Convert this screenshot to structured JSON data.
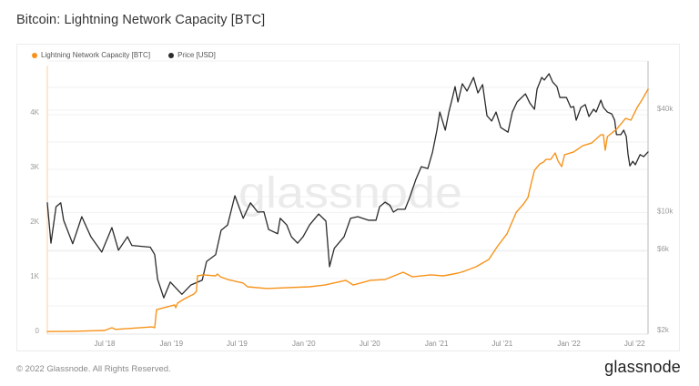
{
  "footer": {
    "copyright": "© 2022 Glassnode. All Rights Reserved.",
    "logo": "glassnode"
  },
  "watermark": "glassnode",
  "chart_data": {
    "type": "line",
    "title": "Bitcoin: Lightning Network Capacity [BTC]",
    "xlabel": "",
    "ylabel_left": "",
    "ylabel_right": "",
    "xlim": [
      "2018-01-24",
      "2022-08-07"
    ],
    "ylim_left": [
      0,
      5000
    ],
    "ylim_right": [
      1950,
      78800
    ],
    "y_right_scale": "log",
    "grid": true,
    "legend_position": "top-left",
    "x_ticks": [
      {
        "date": "2018-07-01",
        "label": "Jul '18"
      },
      {
        "date": "2019-01-01",
        "label": "Jan '19"
      },
      {
        "date": "2019-07-01",
        "label": "Jul '19"
      },
      {
        "date": "2020-01-01",
        "label": "Jan '20"
      },
      {
        "date": "2020-07-01",
        "label": "Jul '20"
      },
      {
        "date": "2021-01-01",
        "label": "Jan '21"
      },
      {
        "date": "2021-07-01",
        "label": "Jul '21"
      },
      {
        "date": "2022-01-01",
        "label": "Jan '22"
      },
      {
        "date": "2022-07-01",
        "label": "Jul '22"
      }
    ],
    "y_left_ticks": [
      {
        "value": 0,
        "label": "0"
      },
      {
        "value": 1000,
        "label": "1K"
      },
      {
        "value": 2000,
        "label": "2K"
      },
      {
        "value": 3000,
        "label": "3K"
      },
      {
        "value": 4000,
        "label": "4K"
      }
    ],
    "y_right_ticks": [
      {
        "value": 2000,
        "label": "$2k"
      },
      {
        "value": 6000,
        "label": "$6k"
      },
      {
        "value": 10000,
        "label": "$10k"
      },
      {
        "value": 40000,
        "label": "$40k"
      }
    ],
    "series": [
      {
        "name": "Lightning Network Capacity [BTC]",
        "axis": "left",
        "color": "#f7931a",
        "points": [
          [
            "2018-01-24",
            30
          ],
          [
            "2018-04-04",
            35
          ],
          [
            "2018-06-01",
            45
          ],
          [
            "2018-07-01",
            50
          ],
          [
            "2018-07-21",
            100
          ],
          [
            "2018-07-31",
            70
          ],
          [
            "2018-09-02",
            85
          ],
          [
            "2018-11-09",
            115
          ],
          [
            "2018-11-16",
            100
          ],
          [
            "2018-11-21",
            430
          ],
          [
            "2019-01-10",
            517
          ],
          [
            "2019-01-13",
            467
          ],
          [
            "2019-01-18",
            550
          ],
          [
            "2019-02-07",
            633
          ],
          [
            "2019-03-04",
            717
          ],
          [
            "2019-03-11",
            767
          ],
          [
            "2019-03-14",
            1050
          ],
          [
            "2019-03-29",
            1067
          ],
          [
            "2019-05-03",
            1050
          ],
          [
            "2019-05-08",
            1083
          ],
          [
            "2019-05-16",
            1033
          ],
          [
            "2019-06-05",
            983
          ],
          [
            "2019-07-18",
            917
          ],
          [
            "2019-07-30",
            850
          ],
          [
            "2019-09-21",
            817
          ],
          [
            "2020-01-17",
            850
          ],
          [
            "2020-02-28",
            883
          ],
          [
            "2020-04-26",
            967
          ],
          [
            "2020-05-16",
            883
          ],
          [
            "2020-07-03",
            967
          ],
          [
            "2020-08-12",
            983
          ],
          [
            "2020-10-01",
            1117
          ],
          [
            "2020-10-26",
            1033
          ],
          [
            "2020-12-16",
            1067
          ],
          [
            "2021-01-20",
            1050
          ],
          [
            "2021-03-01",
            1100
          ],
          [
            "2021-03-18",
            1133
          ],
          [
            "2021-04-20",
            1217
          ],
          [
            "2021-05-25",
            1350
          ],
          [
            "2021-06-19",
            1600
          ],
          [
            "2021-07-14",
            1817
          ],
          [
            "2021-08-09",
            2217
          ],
          [
            "2021-08-29",
            2367
          ],
          [
            "2021-09-10",
            2483
          ],
          [
            "2021-09-18",
            2717
          ],
          [
            "2021-09-28",
            2983
          ],
          [
            "2021-10-13",
            3100
          ],
          [
            "2021-10-23",
            3133
          ],
          [
            "2021-10-30",
            3183
          ],
          [
            "2021-11-12",
            3183
          ],
          [
            "2021-11-24",
            3300
          ],
          [
            "2021-12-02",
            3150
          ],
          [
            "2021-12-12",
            3050
          ],
          [
            "2021-12-20",
            3267
          ],
          [
            "2022-01-14",
            3317
          ],
          [
            "2022-02-08",
            3433
          ],
          [
            "2022-03-05",
            3483
          ],
          [
            "2022-03-30",
            3633
          ],
          [
            "2022-04-06",
            3633
          ],
          [
            "2022-04-11",
            3350
          ],
          [
            "2022-04-17",
            3600
          ],
          [
            "2022-05-12",
            3733
          ],
          [
            "2022-06-06",
            3933
          ],
          [
            "2022-06-21",
            3900
          ],
          [
            "2022-07-08",
            4133
          ],
          [
            "2022-07-21",
            4267
          ],
          [
            "2022-08-07",
            4467
          ]
        ]
      },
      {
        "name": "Price [USD]",
        "axis": "right",
        "color": "#2b2b2b",
        "points": [
          [
            "2018-01-24",
            11400
          ],
          [
            "2018-02-03",
            6600
          ],
          [
            "2018-02-17",
            10800
          ],
          [
            "2018-03-02",
            11400
          ],
          [
            "2018-03-10",
            9000
          ],
          [
            "2018-04-04",
            6550
          ],
          [
            "2018-04-29",
            9450
          ],
          [
            "2018-05-24",
            7200
          ],
          [
            "2018-06-23",
            5850
          ],
          [
            "2018-07-21",
            8150
          ],
          [
            "2018-08-08",
            6000
          ],
          [
            "2018-09-02",
            7200
          ],
          [
            "2018-09-14",
            6400
          ],
          [
            "2018-11-04",
            6250
          ],
          [
            "2018-11-16",
            5650
          ],
          [
            "2018-11-24",
            4050
          ],
          [
            "2018-12-11",
            3150
          ],
          [
            "2018-12-29",
            3900
          ],
          [
            "2019-01-30",
            3300
          ],
          [
            "2019-02-24",
            3750
          ],
          [
            "2019-03-27",
            4000
          ],
          [
            "2019-04-08",
            5150
          ],
          [
            "2019-05-03",
            5650
          ],
          [
            "2019-05-18",
            7850
          ],
          [
            "2019-06-05",
            8450
          ],
          [
            "2019-06-25",
            12550
          ],
          [
            "2019-07-18",
            9250
          ],
          [
            "2019-08-07",
            11400
          ],
          [
            "2019-08-27",
            10050
          ],
          [
            "2019-09-13",
            10100
          ],
          [
            "2019-09-26",
            7950
          ],
          [
            "2019-10-21",
            7500
          ],
          [
            "2019-10-28",
            9250
          ],
          [
            "2019-11-15",
            8450
          ],
          [
            "2019-11-28",
            7200
          ],
          [
            "2019-12-15",
            6600
          ],
          [
            "2019-12-30",
            7200
          ],
          [
            "2020-01-17",
            8450
          ],
          [
            "2020-02-11",
            9800
          ],
          [
            "2020-03-02",
            8900
          ],
          [
            "2020-03-12",
            4800
          ],
          [
            "2020-03-25",
            6150
          ],
          [
            "2020-04-21",
            7200
          ],
          [
            "2020-05-09",
            9250
          ],
          [
            "2020-05-29",
            9450
          ],
          [
            "2020-06-28",
            9000
          ],
          [
            "2020-07-18",
            9000
          ],
          [
            "2020-07-28",
            10800
          ],
          [
            "2020-08-12",
            11500
          ],
          [
            "2020-08-25",
            11050
          ],
          [
            "2020-09-04",
            10050
          ],
          [
            "2020-09-16",
            10450
          ],
          [
            "2020-10-06",
            10450
          ],
          [
            "2020-10-19",
            12250
          ],
          [
            "2020-11-05",
            15650
          ],
          [
            "2020-11-20",
            18600
          ],
          [
            "2020-12-08",
            18150
          ],
          [
            "2020-12-21",
            22700
          ],
          [
            "2021-01-02",
            30500
          ],
          [
            "2021-01-10",
            39000
          ],
          [
            "2021-01-25",
            30500
          ],
          [
            "2021-02-04",
            39000
          ],
          [
            "2021-02-14",
            47500
          ],
          [
            "2021-02-21",
            55000
          ],
          [
            "2021-03-01",
            44700
          ],
          [
            "2021-03-13",
            57200
          ],
          [
            "2021-03-26",
            51800
          ],
          [
            "2021-04-13",
            62300
          ],
          [
            "2021-04-25",
            50500
          ],
          [
            "2021-05-08",
            56500
          ],
          [
            "2021-05-20",
            37100
          ],
          [
            "2021-06-02",
            34500
          ],
          [
            "2021-06-14",
            39000
          ],
          [
            "2021-06-27",
            31600
          ],
          [
            "2021-07-17",
            29700
          ],
          [
            "2021-07-29",
            39000
          ],
          [
            "2021-08-11",
            44700
          ],
          [
            "2021-09-03",
            49900
          ],
          [
            "2021-09-15",
            44100
          ],
          [
            "2021-09-28",
            40500
          ],
          [
            "2021-10-05",
            53100
          ],
          [
            "2021-10-18",
            62300
          ],
          [
            "2021-10-25",
            60100
          ],
          [
            "2021-11-07",
            65500
          ],
          [
            "2021-11-17",
            58600
          ],
          [
            "2021-11-29",
            55000
          ],
          [
            "2021-12-07",
            47500
          ],
          [
            "2021-12-25",
            47500
          ],
          [
            "2022-01-06",
            41500
          ],
          [
            "2022-01-14",
            42000
          ],
          [
            "2022-01-21",
            34900
          ],
          [
            "2022-02-03",
            41500
          ],
          [
            "2022-02-15",
            43100
          ],
          [
            "2022-02-25",
            36700
          ],
          [
            "2022-03-10",
            40500
          ],
          [
            "2022-03-17",
            39000
          ],
          [
            "2022-03-30",
            45800
          ],
          [
            "2022-04-06",
            41500
          ],
          [
            "2022-04-17",
            39000
          ],
          [
            "2022-04-29",
            38000
          ],
          [
            "2022-05-07",
            34900
          ],
          [
            "2022-05-12",
            28700
          ],
          [
            "2022-05-24",
            28700
          ],
          [
            "2022-06-01",
            30500
          ],
          [
            "2022-06-08",
            28000
          ],
          [
            "2022-06-13",
            21900
          ],
          [
            "2022-06-18",
            18800
          ],
          [
            "2022-06-26",
            20000
          ],
          [
            "2022-07-03",
            19100
          ],
          [
            "2022-07-16",
            21900
          ],
          [
            "2022-07-26",
            21300
          ],
          [
            "2022-08-07",
            22700
          ]
        ]
      }
    ]
  }
}
